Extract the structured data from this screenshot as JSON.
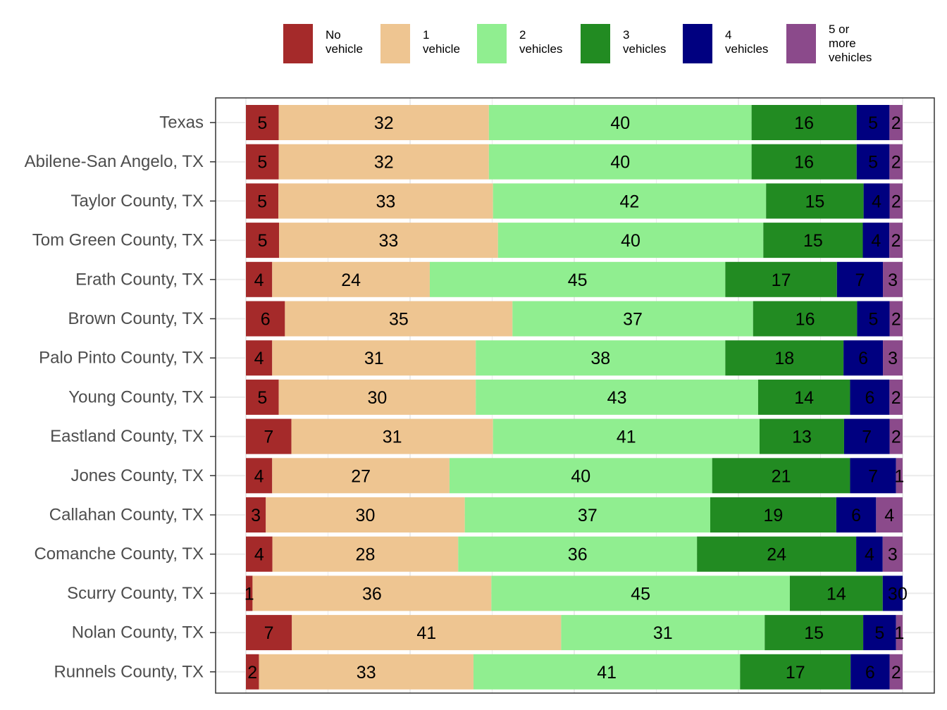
{
  "chart_data": {
    "type": "bar",
    "orientation": "horizontal",
    "stacked": true,
    "percent_stacked": true,
    "legend_position": "top",
    "grid": true,
    "categories": [
      "Texas",
      "Abilene-San Angelo, TX",
      "Taylor County, TX",
      "Tom Green County, TX",
      "Erath County, TX",
      "Brown County, TX",
      "Palo Pinto County, TX",
      "Young County, TX",
      "Eastland County, TX",
      "Jones County, TX",
      "Callahan County, TX",
      "Comanche County, TX",
      "Scurry County, TX",
      "Nolan County, TX",
      "Runnels County, TX"
    ],
    "series": [
      {
        "name": "No vehicle",
        "label_lines": [
          "No",
          "vehicle"
        ],
        "color": "#a52a2a",
        "values": [
          5,
          5,
          5,
          5,
          4,
          6,
          4,
          5,
          7,
          4,
          3,
          4,
          1,
          7,
          2
        ]
      },
      {
        "name": "1 vehicle",
        "label_lines": [
          "1",
          "vehicle"
        ],
        "color": "#eec591",
        "values": [
          32,
          32,
          33,
          33,
          24,
          35,
          31,
          30,
          31,
          27,
          30,
          28,
          36,
          41,
          33
        ]
      },
      {
        "name": "2 vehicles",
        "label_lines": [
          "2",
          "vehicles"
        ],
        "color": "#90ee90",
        "values": [
          40,
          40,
          42,
          40,
          45,
          37,
          38,
          43,
          41,
          40,
          37,
          36,
          45,
          31,
          41
        ]
      },
      {
        "name": "3 vehicles",
        "label_lines": [
          "3",
          "vehicles"
        ],
        "color": "#228b22",
        "values": [
          16,
          16,
          15,
          15,
          17,
          16,
          18,
          14,
          13,
          21,
          19,
          24,
          14,
          15,
          17
        ]
      },
      {
        "name": "4 vehicles",
        "label_lines": [
          "4",
          "vehicles"
        ],
        "color": "#000080",
        "values": [
          5,
          5,
          4,
          4,
          7,
          5,
          6,
          6,
          7,
          7,
          6,
          4,
          3,
          5,
          6
        ]
      },
      {
        "name": "5 or more vehicles",
        "label_lines": [
          "5 or",
          "more",
          "vehicles"
        ],
        "color": "#8b4a8b",
        "values": [
          2,
          2,
          2,
          2,
          3,
          2,
          3,
          2,
          2,
          1,
          4,
          3,
          0,
          1,
          2
        ]
      }
    ],
    "title": "",
    "xlabel": "",
    "ylabel": ""
  }
}
